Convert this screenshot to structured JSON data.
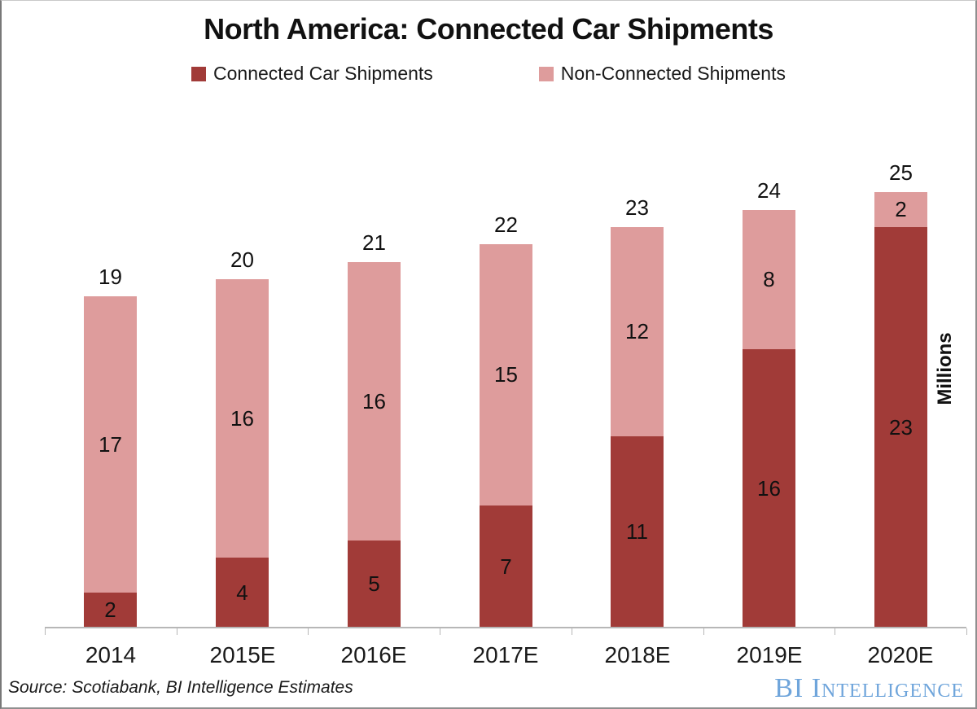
{
  "title": "North America: Connected Car Shipments",
  "legend": {
    "items": [
      {
        "label": "Connected Car Shipments",
        "color": "#a13b38"
      },
      {
        "label": "Non-Connected Shipments",
        "color": "#de9c9c"
      }
    ]
  },
  "y_axis_title": "Millions",
  "source_note": "Source: Scotiabank, BI Intelligence Estimates",
  "logo_text": "BI Intelligence",
  "colors": {
    "connected": "#a13b38",
    "non_connected": "#de9c9c",
    "axis": "#b7b7b7",
    "logo_blue": "#6fa5db",
    "text": "#1a1a1a"
  },
  "chart_data": {
    "type": "bar",
    "stacked": true,
    "title": "North America: Connected Car Shipments",
    "categories": [
      "2014",
      "2015E",
      "2016E",
      "2017E",
      "2018E",
      "2019E",
      "2020E"
    ],
    "series": [
      {
        "name": "Connected Car Shipments",
        "color": "#a13b38",
        "values": [
          2,
          4,
          5,
          7,
          11,
          16,
          23
        ]
      },
      {
        "name": "Non-Connected Shipments",
        "color": "#de9c9c",
        "values": [
          17,
          16,
          16,
          15,
          12,
          8,
          2
        ]
      }
    ],
    "totals": [
      19,
      20,
      21,
      22,
      23,
      24,
      25
    ],
    "xlabel": "",
    "ylabel": "Millions",
    "ylim": [
      0,
      27.5
    ],
    "grid": false,
    "y_axis_ticks_visible": false,
    "legend_position": "top",
    "value_labels": "inside-segments-and-total-above"
  }
}
